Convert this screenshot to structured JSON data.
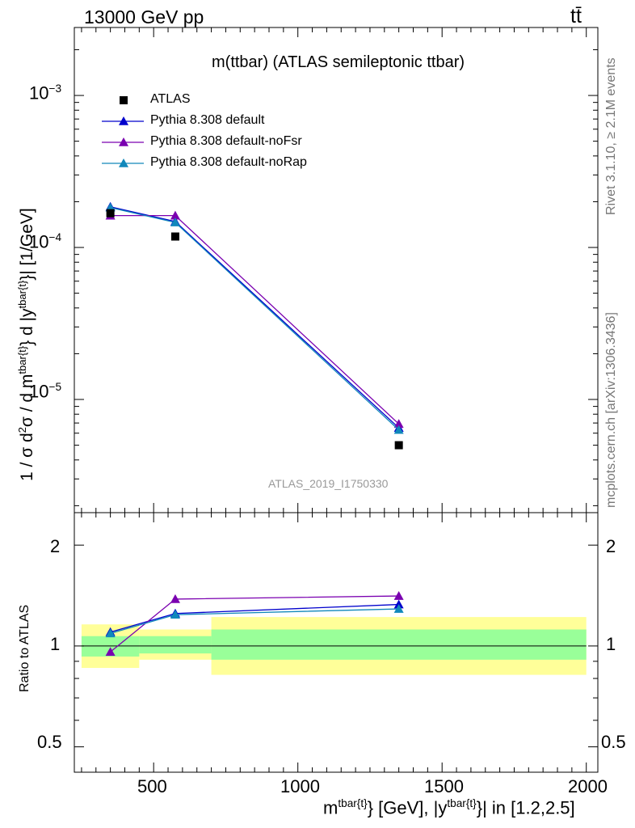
{
  "header": {
    "energy": "13000 GeV pp",
    "process": "tt̄"
  },
  "side": {
    "rivet": "Rivet 3.1.10, ≥ 2.1M events",
    "mcplots": "mcplots.cern.ch [arXiv:1306.3436]"
  },
  "chart_data": [
    {
      "type": "scatter",
      "title": "m(ttbar) (ATLAS semileptonic ttbar)",
      "watermark": "ATLAS_2019_I1750330",
      "ylabel": "1 / σ d²σ / d m^{tbar{t}} d |y^{tbar{t}}| [1/GeV]",
      "yscale": "log",
      "xlim": [
        225,
        2040
      ],
      "ylim": [
        1.8e-06,
        0.0028
      ],
      "ytick_labels": [
        "10^-5",
        "10^-4",
        "10^-3"
      ],
      "legend_position": "top-left",
      "data": {
        "name": "ATLAS",
        "color": "#000000",
        "x": [
          350,
          575,
          1350
        ],
        "y": [
          0.000168,
          0.000118,
          5e-06
        ],
        "bins": [
          [
            250,
            450
          ],
          [
            450,
            700
          ],
          [
            700,
            2000
          ]
        ]
      },
      "series": [
        {
          "name": "Pythia 8.308 default",
          "color": "#0000cc",
          "x": [
            350,
            575,
            1350
          ],
          "y": [
            0.000185,
            0.000148,
            6.5e-06
          ]
        },
        {
          "name": "Pythia 8.308 default-noFsr",
          "color": "#7a00b0",
          "x": [
            350,
            575,
            1350
          ],
          "y": [
            0.000162,
            0.000162,
            6.9e-06
          ]
        },
        {
          "name": "Pythia 8.308 default-noRap",
          "color": "#1188bb",
          "x": [
            350,
            575,
            1350
          ],
          "y": [
            0.000183,
            0.000146,
            6.3e-06
          ]
        }
      ]
    },
    {
      "type": "scatter",
      "ylabel": "Ratio to ATLAS",
      "xlabel": "m^{tbar{t}} [GeV], |y^{tbar{t}}| in [1.2,2.5]",
      "yscale": "log",
      "xlim": [
        225,
        2040
      ],
      "ylim": [
        0.42,
        2.5
      ],
      "xticks": [
        500,
        1000,
        1500,
        2000
      ],
      "yticks": [
        0.5,
        1,
        2
      ],
      "reference": 1,
      "bands": [
        {
          "x0": 250,
          "x1": 450,
          "green": [
            0.93,
            1.07
          ],
          "yellow": [
            0.86,
            1.16
          ]
        },
        {
          "x0": 450,
          "x1": 700,
          "green": [
            0.95,
            1.07
          ],
          "yellow": [
            0.91,
            1.12
          ]
        },
        {
          "x0": 700,
          "x1": 2000,
          "green": [
            0.91,
            1.12
          ],
          "yellow": [
            0.82,
            1.22
          ]
        }
      ],
      "series": [
        {
          "name": "Pythia 8.308 default",
          "color": "#0000cc",
          "x": [
            350,
            575,
            1350
          ],
          "y": [
            1.1,
            1.25,
            1.33
          ]
        },
        {
          "name": "Pythia 8.308 default-noFsr",
          "color": "#7a00b0",
          "x": [
            350,
            575,
            1350
          ],
          "y": [
            0.96,
            1.38,
            1.41
          ]
        },
        {
          "name": "Pythia 8.308 default-noRap",
          "color": "#1188bb",
          "x": [
            350,
            575,
            1350
          ],
          "y": [
            1.09,
            1.24,
            1.29
          ]
        }
      ]
    }
  ]
}
